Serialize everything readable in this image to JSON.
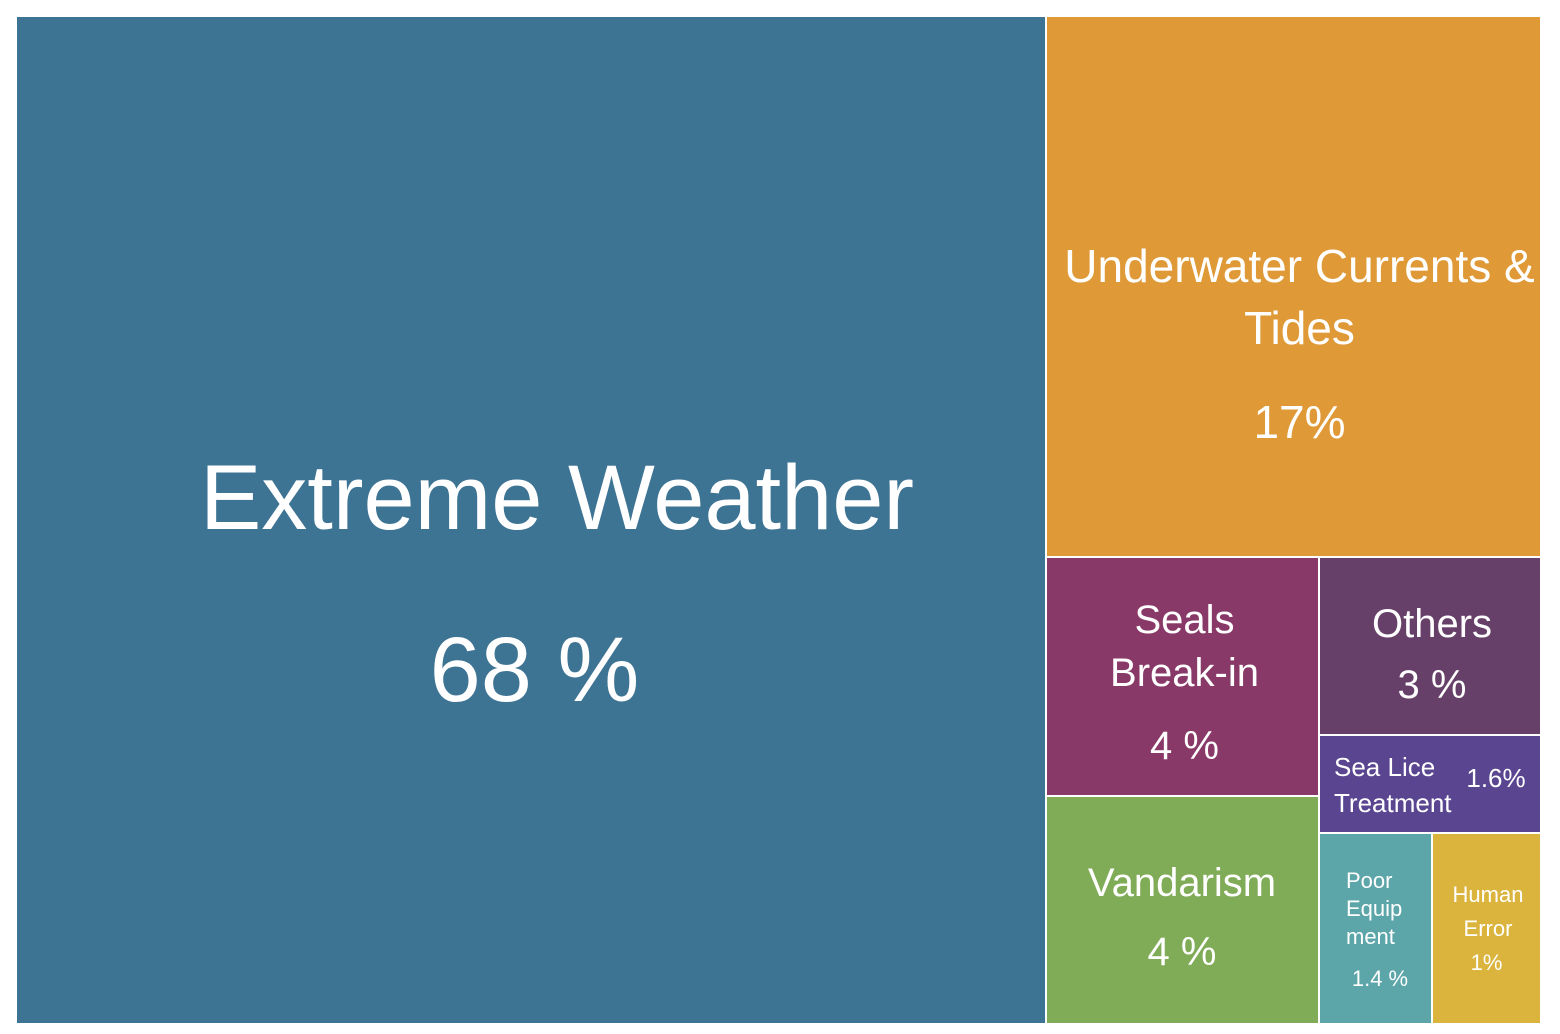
{
  "chart_data": {
    "type": "treemap",
    "title": "",
    "items": [
      {
        "name": "Extreme Weather",
        "value": 68,
        "display": "68 %",
        "color": "#3d7393"
      },
      {
        "name": "Underwater Currents & Tides",
        "value": 17,
        "display": "17%",
        "color": "#df9a37"
      },
      {
        "name": "Seals Break-in",
        "value": 4,
        "display": "4 %",
        "color": "#893968"
      },
      {
        "name": "Vandarism",
        "value": 4,
        "display": "4 %",
        "color": "#80ab57"
      },
      {
        "name": "Others",
        "value": 3,
        "display": "3 %",
        "color": "#67406a"
      },
      {
        "name": "Sea Lice Treatment",
        "value": 1.6,
        "display": "1.6%",
        "color": "#5a4590"
      },
      {
        "name": "Poor Equipment",
        "value": 1.4,
        "display": "1.4 %",
        "color": "#5ca5a8"
      },
      {
        "name": "Human Error",
        "value": 1,
        "display": "1%",
        "color": "#dab43c"
      }
    ]
  }
}
